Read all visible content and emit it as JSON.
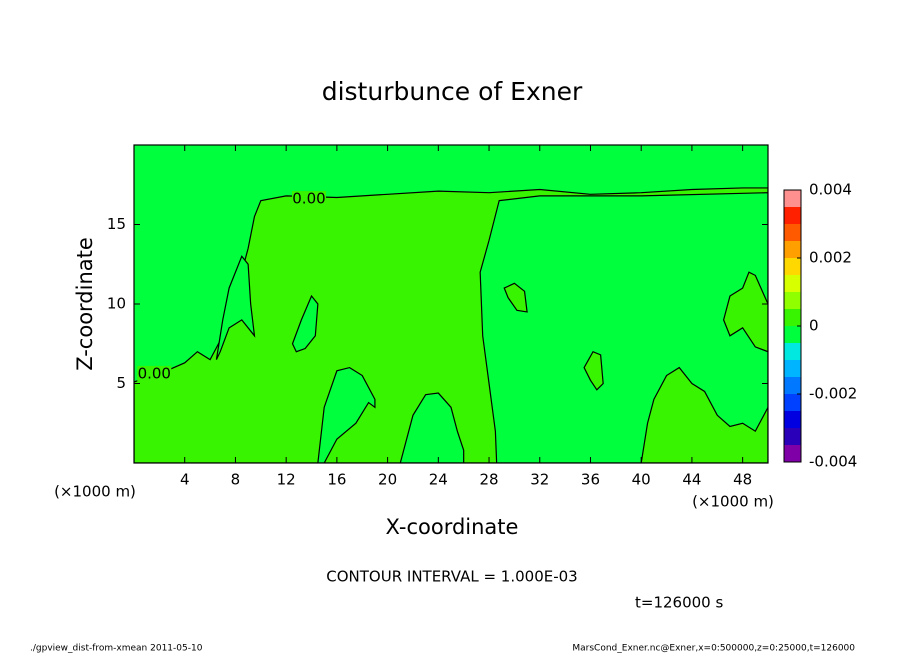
{
  "chart_data": {
    "type": "contour",
    "title": "disturbunce of Exner",
    "xlabel": "X-coordinate",
    "ylabel": "Z-coordinate",
    "xunit": "(×1000 m)",
    "xlim": [
      0,
      50
    ],
    "ylim": [
      0,
      20
    ],
    "xticks": [
      4,
      8,
      12,
      16,
      20,
      24,
      28,
      32,
      36,
      40,
      44,
      48
    ],
    "yticks": [
      5,
      10,
      15
    ],
    "colorbar": {
      "levels": [
        -0.004,
        -0.0035,
        -0.003,
        -0.0025,
        -0.002,
        -0.0015,
        -0.001,
        -0.0005,
        0,
        0.0005,
        0.001,
        0.0015,
        0.002,
        0.0025,
        0.003,
        0.0035,
        0.004
      ],
      "colors": [
        "#8000a8",
        "#2a00b8",
        "#0000e0",
        "#0040ff",
        "#0078ff",
        "#00b4ff",
        "#00e8e0",
        "#00ff3c",
        "#38f400",
        "#90ff00",
        "#d8ff00",
        "#ffd800",
        "#ffa000",
        "#ff5a00",
        "#ff2000",
        "#ff9090"
      ],
      "lim": [
        -0.004,
        0.004
      ],
      "ticks": [
        -0.004,
        -0.002,
        0,
        0.002,
        0.004
      ]
    },
    "background_band": 7,
    "regions": [
      {
        "band": 8,
        "x": [
          0,
          2,
          4,
          5,
          6,
          7,
          8,
          8.5,
          9,
          9.5,
          10,
          12,
          16,
          20,
          24,
          28,
          32,
          36,
          40,
          44,
          48,
          50,
          50,
          0
        ],
        "z": [
          5.1,
          5.6,
          6.3,
          7,
          6.5,
          8,
          10,
          12,
          13.5,
          15.5,
          16.5,
          16.8,
          16.7,
          16.9,
          17.1,
          17.0,
          17.2,
          16.9,
          17.0,
          17.2,
          17.3,
          17.3,
          0,
          0
        ]
      },
      {
        "band": 7,
        "x": [
          14.5,
          15,
          16,
          17,
          18,
          19,
          19,
          18.5,
          17.5,
          16,
          15
        ],
        "z": [
          0,
          3.5,
          5.8,
          6,
          5.5,
          4,
          3.5,
          3.8,
          2.5,
          1.5,
          0
        ]
      },
      {
        "band": 7,
        "x": [
          21,
          22,
          23,
          24,
          25,
          25.5,
          26,
          26
        ],
        "z": [
          0,
          3,
          4.3,
          4.4,
          3.5,
          2,
          0.8,
          0
        ]
      },
      {
        "band": 7,
        "x": [
          28.8,
          32,
          40,
          50,
          50,
          28.6,
          28.5,
          28,
          27.5,
          27.3,
          28
        ],
        "z": [
          16.5,
          16.8,
          16.8,
          17.0,
          0,
          0,
          2,
          5,
          8,
          12,
          14
        ]
      },
      {
        "band": 8,
        "x": [
          40,
          40.5,
          41,
          42,
          43,
          44,
          45,
          46,
          47,
          48,
          49,
          50,
          50
        ],
        "z": [
          0,
          2.5,
          4,
          5.5,
          6,
          5,
          4.5,
          3,
          2.3,
          2.5,
          2,
          3.5,
          0
        ]
      },
      {
        "band": 8,
        "x": [
          46.5,
          47,
          48,
          48.5,
          49,
          50,
          50,
          49,
          48,
          47
        ],
        "z": [
          9,
          10.5,
          11,
          12,
          11.8,
          10,
          7,
          7.3,
          8.5,
          8
        ]
      },
      {
        "band": 8,
        "x": [
          35.5,
          36.2,
          36.8,
          37,
          36.5,
          36
        ],
        "z": [
          6,
          7,
          6.8,
          5,
          4.6,
          5.2
        ]
      },
      {
        "band": 8,
        "x": [
          29.2,
          30,
          30.8,
          31,
          30.2,
          29.5
        ],
        "z": [
          11,
          11.3,
          10.8,
          9.5,
          9.6,
          10.4
        ]
      },
      {
        "band": 7,
        "x": [
          6.5,
          7,
          7.5,
          8.5,
          9,
          9.2,
          9.5,
          8.5,
          7.5,
          6.8
        ],
        "z": [
          6.5,
          9,
          11,
          13,
          12.5,
          10,
          8,
          9,
          8.5,
          7
        ]
      },
      {
        "band": 7,
        "x": [
          12.5,
          13.2,
          14,
          14.5,
          14.3,
          13.5,
          12.8
        ],
        "z": [
          7.5,
          9,
          10.5,
          10,
          8,
          7.2,
          7
        ]
      }
    ],
    "contour_labels": [
      "0.00",
      "0.00"
    ],
    "note": "CONTOUR INTERVAL = 1.000E-03",
    "time": "t=126000 s",
    "footer_left": "./gpview_dist-from-xmean  2011-05-10",
    "footer_right": "MarsCond_Exner.nc@Exner,x=0:500000,z=0:25000,t=126000"
  }
}
